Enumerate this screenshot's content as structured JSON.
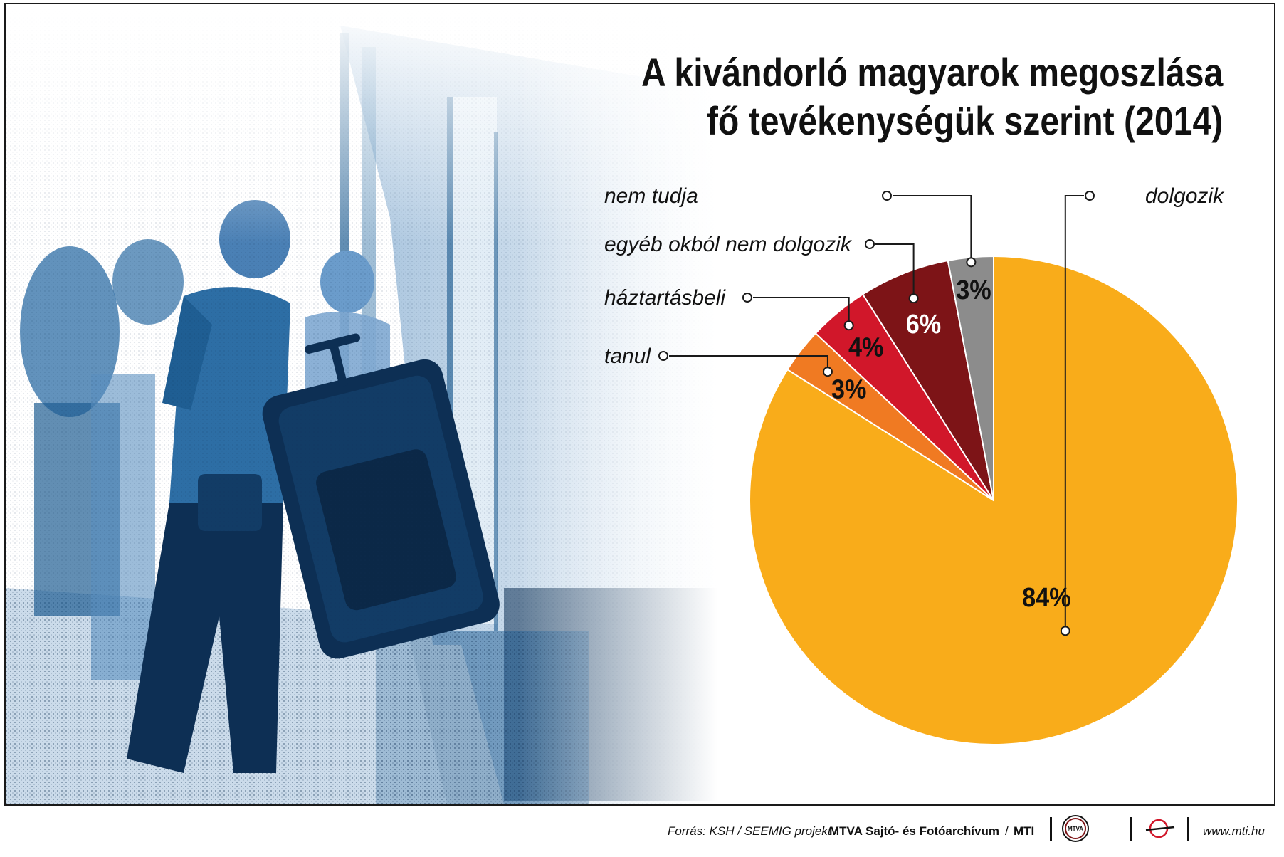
{
  "title": {
    "line1": "A kivándorló magyarok megoszlása",
    "line2": "fő tevékenységük szerint (2014)"
  },
  "chart_data": {
    "type": "pie",
    "title": "A kivándorló magyarok megoszlása fő tevékenységük szerint (2014)",
    "slices": [
      {
        "label": "dolgozik",
        "value": 84,
        "value_label": "84%",
        "color": "#f9ac1a"
      },
      {
        "label": "tanul",
        "value": 3,
        "value_label": "3%",
        "color": "#f07a22"
      },
      {
        "label": "háztartásbeli",
        "value": 4,
        "value_label": "4%",
        "color": "#d1172a"
      },
      {
        "label": "egyéb okból nem dolgozik",
        "value": 6,
        "value_label": "6%",
        "color": "#7d1417"
      },
      {
        "label": "nem tudja",
        "value": 3,
        "value_label": "3%",
        "color": "#8c8c8c"
      }
    ],
    "start": "12 o'clock",
    "direction": "clockwise",
    "legend": "callout labels with leader lines"
  },
  "footer": {
    "source_label": "Forrás: KSH / SEEMIG projekt /",
    "agency": "MTVA Sajtó- és Fotóarchívum",
    "slash": "/",
    "mti": "MTI",
    "logo_text": "MTVA",
    "website": "www.mti.hu"
  },
  "colors": {
    "photo_blue": "#1f5e93",
    "photo_dark": "#0d2f54",
    "border": "#1a1a1a"
  },
  "icons": [
    "mtva-logo-icon",
    "mti-logo-icon"
  ]
}
